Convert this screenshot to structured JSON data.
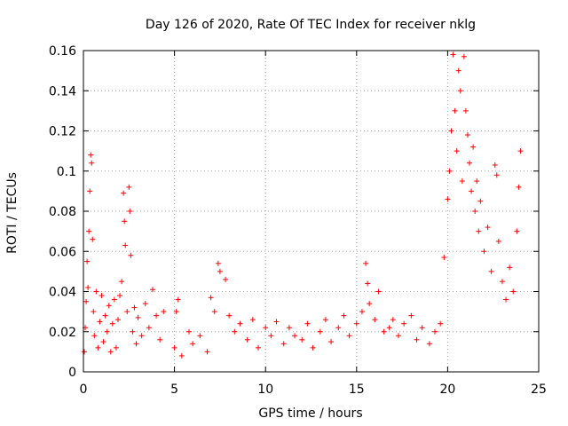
{
  "chart_data": {
    "type": "scatter",
    "title": "Day 126 of 2020, Rate Of TEC Index for receiver nklg",
    "xlabel": "GPS time / hours",
    "ylabel": "ROTI / TECUs",
    "xlim": [
      0,
      25
    ],
    "ylim": [
      0,
      0.16
    ],
    "x_ticks": [
      "0",
      "5",
      "10",
      "15",
      "20",
      "25"
    ],
    "y_ticks": [
      "0",
      "0.02",
      "0.04",
      "0.06",
      "0.08",
      "0.1",
      "0.12",
      "0.14",
      "0.16"
    ],
    "grid": true,
    "marker": "+",
    "color": "#ff0000",
    "series": [
      {
        "points": [
          [
            0.05,
            0.01
          ],
          [
            0.1,
            0.022
          ],
          [
            0.15,
            0.035
          ],
          [
            0.2,
            0.055
          ],
          [
            0.25,
            0.042
          ],
          [
            0.3,
            0.07
          ],
          [
            0.35,
            0.09
          ],
          [
            0.4,
            0.108
          ],
          [
            0.45,
            0.104
          ],
          [
            0.5,
            0.066
          ],
          [
            0.55,
            0.03
          ],
          [
            0.6,
            0.018
          ],
          [
            0.7,
            0.04
          ],
          [
            0.8,
            0.012
          ],
          [
            0.9,
            0.025
          ],
          [
            1.0,
            0.038
          ],
          [
            1.1,
            0.015
          ],
          [
            1.2,
            0.028
          ],
          [
            1.3,
            0.02
          ],
          [
            1.4,
            0.033
          ],
          [
            1.5,
            0.01
          ],
          [
            1.6,
            0.024
          ],
          [
            1.7,
            0.036
          ],
          [
            1.8,
            0.012
          ],
          [
            1.9,
            0.026
          ],
          [
            2.0,
            0.038
          ],
          [
            2.1,
            0.045
          ],
          [
            2.2,
            0.089
          ],
          [
            2.25,
            0.075
          ],
          [
            2.3,
            0.063
          ],
          [
            2.4,
            0.03
          ],
          [
            2.5,
            0.092
          ],
          [
            2.55,
            0.08
          ],
          [
            2.6,
            0.058
          ],
          [
            2.7,
            0.02
          ],
          [
            2.8,
            0.032
          ],
          [
            2.9,
            0.014
          ],
          [
            3.0,
            0.027
          ],
          [
            3.2,
            0.018
          ],
          [
            3.4,
            0.034
          ],
          [
            3.6,
            0.022
          ],
          [
            3.8,
            0.041
          ],
          [
            4.0,
            0.028
          ],
          [
            4.2,
            0.016
          ],
          [
            4.4,
            0.03
          ],
          [
            5.0,
            0.012
          ],
          [
            5.1,
            0.03
          ],
          [
            5.2,
            0.036
          ],
          [
            5.4,
            0.008
          ],
          [
            5.8,
            0.02
          ],
          [
            6.0,
            0.014
          ],
          [
            6.4,
            0.018
          ],
          [
            6.8,
            0.01
          ],
          [
            7.0,
            0.037
          ],
          [
            7.2,
            0.03
          ],
          [
            7.4,
            0.054
          ],
          [
            7.5,
            0.05
          ],
          [
            7.8,
            0.046
          ],
          [
            8.0,
            0.028
          ],
          [
            8.3,
            0.02
          ],
          [
            8.6,
            0.024
          ],
          [
            9.0,
            0.016
          ],
          [
            9.3,
            0.026
          ],
          [
            9.6,
            0.012
          ],
          [
            10.0,
            0.022
          ],
          [
            10.3,
            0.018
          ],
          [
            10.6,
            0.025
          ],
          [
            11.0,
            0.014
          ],
          [
            11.3,
            0.022
          ],
          [
            11.6,
            0.018
          ],
          [
            12.0,
            0.016
          ],
          [
            12.3,
            0.024
          ],
          [
            12.6,
            0.012
          ],
          [
            13.0,
            0.02
          ],
          [
            13.3,
            0.026
          ],
          [
            13.6,
            0.015
          ],
          [
            14.0,
            0.022
          ],
          [
            14.3,
            0.028
          ],
          [
            14.6,
            0.018
          ],
          [
            15.0,
            0.024
          ],
          [
            15.3,
            0.03
          ],
          [
            15.5,
            0.054
          ],
          [
            15.6,
            0.044
          ],
          [
            15.7,
            0.034
          ],
          [
            16.0,
            0.026
          ],
          [
            16.2,
            0.04
          ],
          [
            16.5,
            0.02
          ],
          [
            16.8,
            0.022
          ],
          [
            17.0,
            0.026
          ],
          [
            17.3,
            0.018
          ],
          [
            17.6,
            0.024
          ],
          [
            18.0,
            0.028
          ],
          [
            18.3,
            0.016
          ],
          [
            18.6,
            0.022
          ],
          [
            19.0,
            0.014
          ],
          [
            19.3,
            0.02
          ],
          [
            19.6,
            0.024
          ],
          [
            19.8,
            0.057
          ],
          [
            20.0,
            0.086
          ],
          [
            20.1,
            0.1
          ],
          [
            20.2,
            0.12
          ],
          [
            20.3,
            0.158
          ],
          [
            20.4,
            0.13
          ],
          [
            20.5,
            0.11
          ],
          [
            20.6,
            0.15
          ],
          [
            20.7,
            0.14
          ],
          [
            20.8,
            0.095
          ],
          [
            20.9,
            0.157
          ],
          [
            21.0,
            0.13
          ],
          [
            21.1,
            0.118
          ],
          [
            21.2,
            0.104
          ],
          [
            21.3,
            0.09
          ],
          [
            21.4,
            0.112
          ],
          [
            21.5,
            0.08
          ],
          [
            21.6,
            0.095
          ],
          [
            21.7,
            0.07
          ],
          [
            21.8,
            0.085
          ],
          [
            22.0,
            0.06
          ],
          [
            22.2,
            0.072
          ],
          [
            22.4,
            0.05
          ],
          [
            22.6,
            0.103
          ],
          [
            22.7,
            0.098
          ],
          [
            22.8,
            0.065
          ],
          [
            23.0,
            0.045
          ],
          [
            23.2,
            0.036
          ],
          [
            23.4,
            0.052
          ],
          [
            23.6,
            0.04
          ],
          [
            23.8,
            0.07
          ],
          [
            23.9,
            0.092
          ],
          [
            24.0,
            0.11
          ]
        ]
      }
    ]
  }
}
